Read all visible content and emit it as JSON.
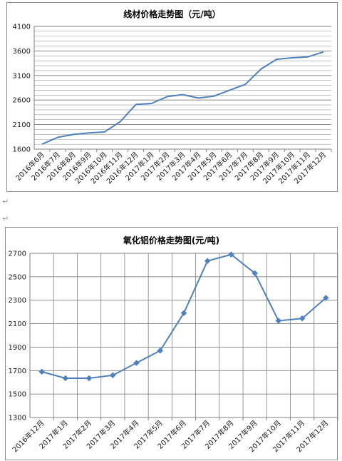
{
  "charts": [
    {
      "title": "线材价格走势图（元/吨）",
      "color": "#4f81bd",
      "chart_data": {
        "type": "line",
        "title": "线材价格走势图（元/吨）",
        "categories": [
          "2016年6月",
          "2016年7月",
          "2016年8月",
          "2016年9月",
          "2016年10月",
          "2016年11月",
          "2016年12月",
          "2017年1月",
          "2017年2月",
          "2017年3月",
          "2017年4月",
          "2017年5月",
          "2017年6月",
          "2017年7月",
          "2017年8月",
          "2017年9月",
          "2017年10月",
          "2017年11月",
          "2017年12月"
        ],
        "series": [
          {
            "values": [
              1700,
              1840,
              1900,
              1930,
              1950,
              2160,
              2510,
              2530,
              2670,
              2710,
              2640,
              2680,
              2800,
              2920,
              3230,
              3430,
              3460,
              3480,
              3580
            ]
          }
        ],
        "ylim": [
          1600,
          4100
        ],
        "ytick_step": 500,
        "grid": "horizontal"
      }
    },
    {
      "title": "氧化铝价格走势图(元/吨)",
      "color": "#4f81bd",
      "chart_data": {
        "type": "line",
        "title": "氧化铝价格走势图(元/吨)",
        "categories": [
          "2016年12月",
          "2017年1月",
          "2017年2月",
          "2017年3月",
          "2017年4月",
          "2017年5月",
          "2017年6月",
          "2017年7月",
          "2017年8月",
          "2017年9月",
          "2017年10月",
          "2017年11月",
          "2017年12月"
        ],
        "series": [
          {
            "values": [
              1690,
              1635,
              1635,
              1660,
              1765,
              1870,
              2190,
              2635,
              2690,
              2530,
              2125,
              2145,
              2320
            ],
            "marker": "diamond"
          }
        ],
        "ylim": [
          1300,
          2700
        ],
        "ytick_step": 200,
        "grid": "both"
      }
    }
  ],
  "marks": [
    "↵",
    "↵"
  ]
}
